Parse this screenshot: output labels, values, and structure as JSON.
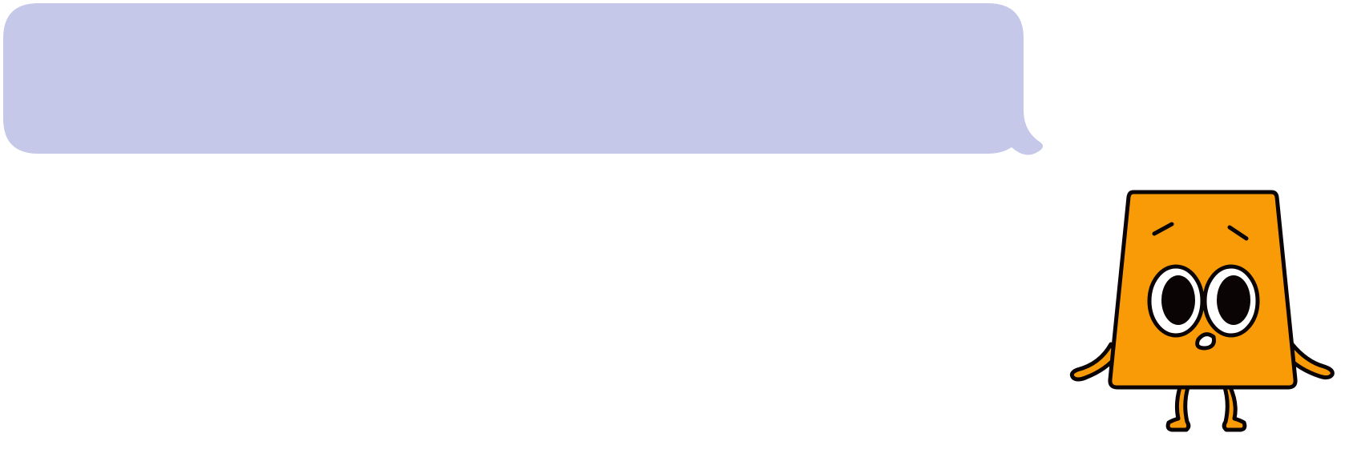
{
  "scene": {
    "background_color": "#ffffff"
  },
  "speech_bubble": {
    "text": "",
    "fill_color": "#c5c8e8"
  },
  "character": {
    "name": "",
    "body_color": "#f99b07",
    "outline_color": "#0a0405",
    "eye_white_color": "#ffffff",
    "pupil_color": "#0a0405",
    "expression": "worried"
  }
}
